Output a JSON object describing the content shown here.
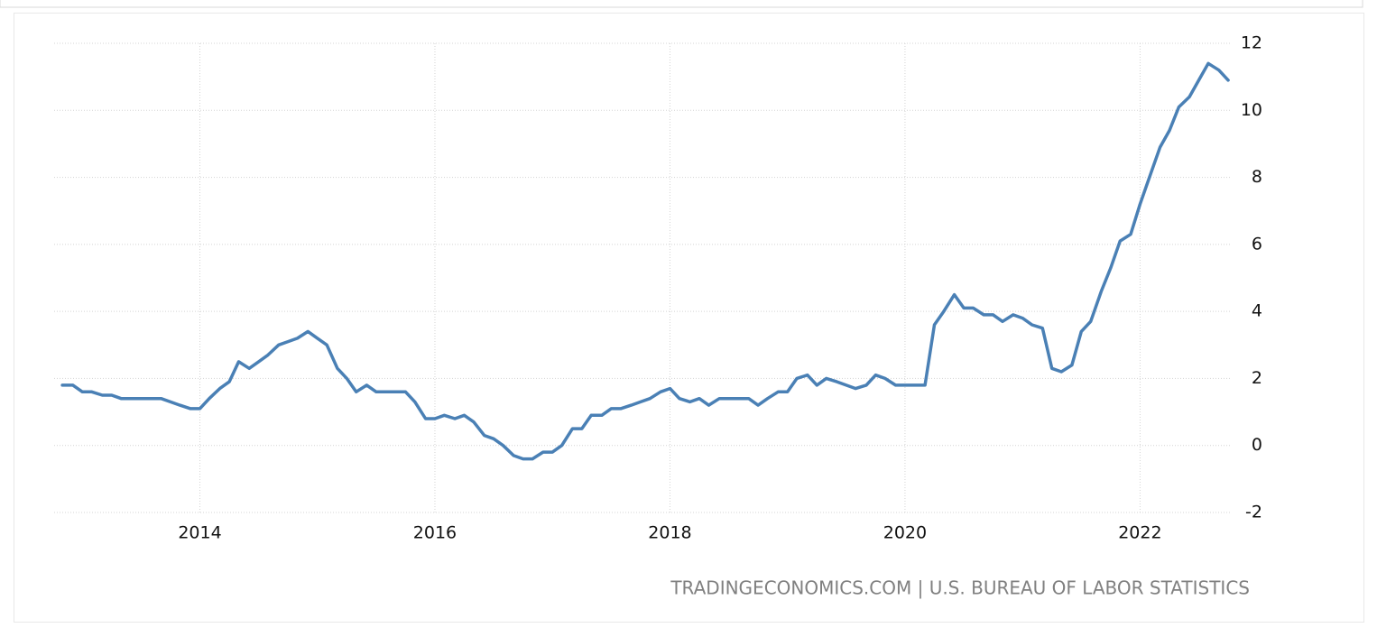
{
  "chart_data": {
    "type": "line",
    "source": "TRADINGECONOMICS.COM | U.S. BUREAU OF LABOR STATISTICS",
    "x": [
      2012.83,
      2012.92,
      2013.0,
      2013.08,
      2013.17,
      2013.25,
      2013.33,
      2013.42,
      2013.5,
      2013.58,
      2013.67,
      2013.75,
      2013.83,
      2013.92,
      2014.0,
      2014.08,
      2014.17,
      2014.25,
      2014.33,
      2014.42,
      2014.5,
      2014.58,
      2014.67,
      2014.75,
      2014.83,
      2014.92,
      2015.0,
      2015.08,
      2015.17,
      2015.25,
      2015.33,
      2015.42,
      2015.5,
      2015.58,
      2015.67,
      2015.75,
      2015.83,
      2015.92,
      2016.0,
      2016.08,
      2016.17,
      2016.25,
      2016.33,
      2016.42,
      2016.5,
      2016.58,
      2016.67,
      2016.75,
      2016.83,
      2016.92,
      2017.0,
      2017.08,
      2017.17,
      2017.25,
      2017.33,
      2017.42,
      2017.5,
      2017.58,
      2017.67,
      2017.75,
      2017.83,
      2017.92,
      2018.0,
      2018.08,
      2018.17,
      2018.25,
      2018.33,
      2018.42,
      2018.5,
      2018.58,
      2018.67,
      2018.75,
      2018.83,
      2018.92,
      2019.0,
      2019.08,
      2019.17,
      2019.25,
      2019.33,
      2019.42,
      2019.5,
      2019.58,
      2019.67,
      2019.75,
      2019.83,
      2019.92,
      2020.0,
      2020.08,
      2020.17,
      2020.25,
      2020.33,
      2020.42,
      2020.5,
      2020.58,
      2020.67,
      2020.75,
      2020.83,
      2020.92,
      2021.0,
      2021.08,
      2021.17,
      2021.25,
      2021.33,
      2021.42,
      2021.5,
      2021.58,
      2021.67,
      2021.75,
      2021.83,
      2021.92,
      2022.0,
      2022.08,
      2022.17,
      2022.25,
      2022.33,
      2022.42,
      2022.5,
      2022.58,
      2022.67,
      2022.75
    ],
    "series": [
      {
        "color": "#4a80b5",
        "values": [
          1.8,
          1.8,
          1.6,
          1.6,
          1.5,
          1.5,
          1.4,
          1.4,
          1.4,
          1.4,
          1.4,
          1.3,
          1.2,
          1.1,
          1.1,
          1.4,
          1.7,
          1.9,
          2.5,
          2.3,
          2.5,
          2.7,
          3.0,
          3.1,
          3.2,
          3.4,
          3.2,
          3.0,
          2.3,
          2.0,
          1.6,
          1.8,
          1.6,
          1.6,
          1.6,
          1.6,
          1.3,
          0.8,
          0.8,
          0.9,
          0.8,
          0.9,
          0.7,
          0.3,
          0.2,
          0.0,
          -0.3,
          -0.4,
          -0.4,
          -0.2,
          -0.2,
          0.0,
          0.5,
          0.5,
          0.9,
          0.9,
          1.1,
          1.1,
          1.2,
          1.3,
          1.4,
          1.6,
          1.7,
          1.4,
          1.3,
          1.4,
          1.2,
          1.4,
          1.4,
          1.4,
          1.4,
          1.2,
          1.4,
          1.6,
          1.6,
          2.0,
          2.1,
          1.8,
          2.0,
          1.9,
          1.8,
          1.7,
          1.8,
          2.1,
          2.0,
          1.8,
          1.8,
          1.8,
          1.8,
          3.6,
          4.0,
          4.5,
          4.1,
          4.1,
          3.9,
          3.9,
          3.7,
          3.9,
          3.8,
          3.6,
          3.5,
          2.3,
          2.2,
          2.4,
          3.4,
          3.7,
          4.6,
          5.3,
          6.1,
          6.3,
          7.2,
          8.0,
          8.9,
          9.4,
          10.1,
          10.4,
          10.9,
          11.4,
          11.2,
          10.9
        ]
      }
    ],
    "xlim": [
      2012.76,
      2022.78
    ],
    "xticks": [
      2014,
      2016,
      2018,
      2020,
      2022
    ],
    "ylim": [
      -2,
      12
    ],
    "yticks": [
      -2,
      0,
      2,
      4,
      6,
      8,
      10,
      12
    ],
    "grid": true
  }
}
